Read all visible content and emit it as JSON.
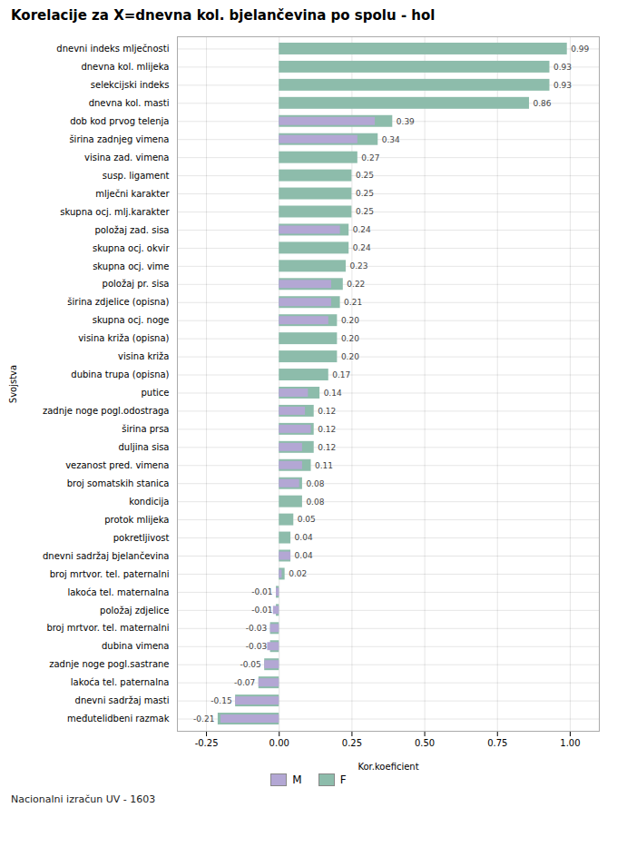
{
  "chart_data": {
    "type": "bar",
    "orientation": "horizontal",
    "title": "Korelacije za X=dnevna kol. bjelančevina po spolu - hol",
    "xlabel": "Kor.koeficient",
    "ylabel": "Svojstva",
    "footnote": "Nacionalni izračun UV - 1603",
    "categories": [
      "dnevni indeks mlječnosti",
      "dnevna kol. mlijeka",
      "selekcijski indeks",
      "dnevna kol. masti",
      "dob kod prvog telenja",
      "širina zadnjeg vimena",
      "visina zad. vimena",
      "susp. ligament",
      "mlječni karakter",
      "skupna ocj. mlj.karakter",
      "položaj zad. sisa",
      "skupna ocj. okvir",
      "skupna ocj. vime",
      "položaj pr. sisa",
      "širina zdjelice (opisna)",
      "skupna ocj. noge",
      "visina križa (opisna)",
      "visina križa",
      "dubina trupa (opisna)",
      "putice",
      "zadnje noge pogl.odostraga",
      "širina prsa",
      "duljina sisa",
      "vezanost pred. vimena",
      "broj somatskih stanica",
      "kondicija",
      "protok mlijeka",
      "pokretljivost",
      "dnevni sadržaj bjelančevina",
      "broj mrtvor. tel. paternalni",
      "lakoća tel. maternalna",
      "položaj zdjelice",
      "broj mrtvor. tel. maternalni",
      "dubina vimena",
      "zadnje noge pogl.sastrane",
      "lakoća tel. paternalna",
      "dnevni sadržaj masti",
      "međutelidbeni razmak"
    ],
    "series": [
      {
        "name": "M",
        "color": "#b3a7d4",
        "data_labels": false,
        "values": [
          null,
          null,
          null,
          null,
          0.33,
          0.27,
          null,
          null,
          null,
          null,
          0.21,
          null,
          null,
          0.18,
          0.18,
          0.17,
          null,
          null,
          null,
          0.1,
          0.09,
          0.11,
          0.08,
          0.08,
          0.07,
          null,
          null,
          null,
          0.04,
          0.01,
          -0.01,
          -0.02,
          -0.03,
          -0.04,
          -0.05,
          -0.07,
          -0.15,
          -0.2
        ]
      },
      {
        "name": "F",
        "color": "#8dbcab",
        "data_labels": true,
        "values": [
          0.99,
          0.93,
          0.93,
          0.86,
          0.39,
          0.34,
          0.27,
          0.25,
          0.25,
          0.25,
          0.24,
          0.24,
          0.23,
          0.22,
          0.21,
          0.2,
          0.2,
          0.2,
          0.17,
          0.14,
          0.12,
          0.12,
          0.12,
          0.11,
          0.08,
          0.08,
          0.05,
          0.04,
          0.04,
          0.02,
          -0.01,
          -0.01,
          -0.03,
          -0.03,
          -0.05,
          -0.07,
          -0.15,
          -0.21
        ],
        "value_labels": [
          "0.99",
          "0.93",
          "0.93",
          "0.86",
          "0.39",
          "0.34",
          "0.27",
          "0.25",
          "0.25",
          "0.25",
          "0.24",
          "0.24",
          "0.23",
          "0.22",
          "0.21",
          "0.20",
          "0.20",
          "0.20",
          "0.17",
          "0.14",
          "0.12",
          "0.12",
          "0.12",
          "0.11",
          "0.08",
          "0.08",
          "0.05",
          "0.04",
          "0.04",
          "0.02",
          "-0.01",
          "-0.01",
          "-0.03",
          "-0.03",
          "-0.05",
          "-0.07",
          "-0.15",
          "-0.21"
        ]
      }
    ],
    "xlim": [
      -0.35,
      1.1
    ],
    "xticks": [
      -0.25,
      {
        "value": 0,
        "label": "0.00"
      },
      0.25,
      {
        "value": 0.5,
        "label": "0.50"
      },
      0.75,
      {
        "value": 1,
        "label": "1.00"
      }
    ],
    "grid": true,
    "legend": "bottom"
  }
}
